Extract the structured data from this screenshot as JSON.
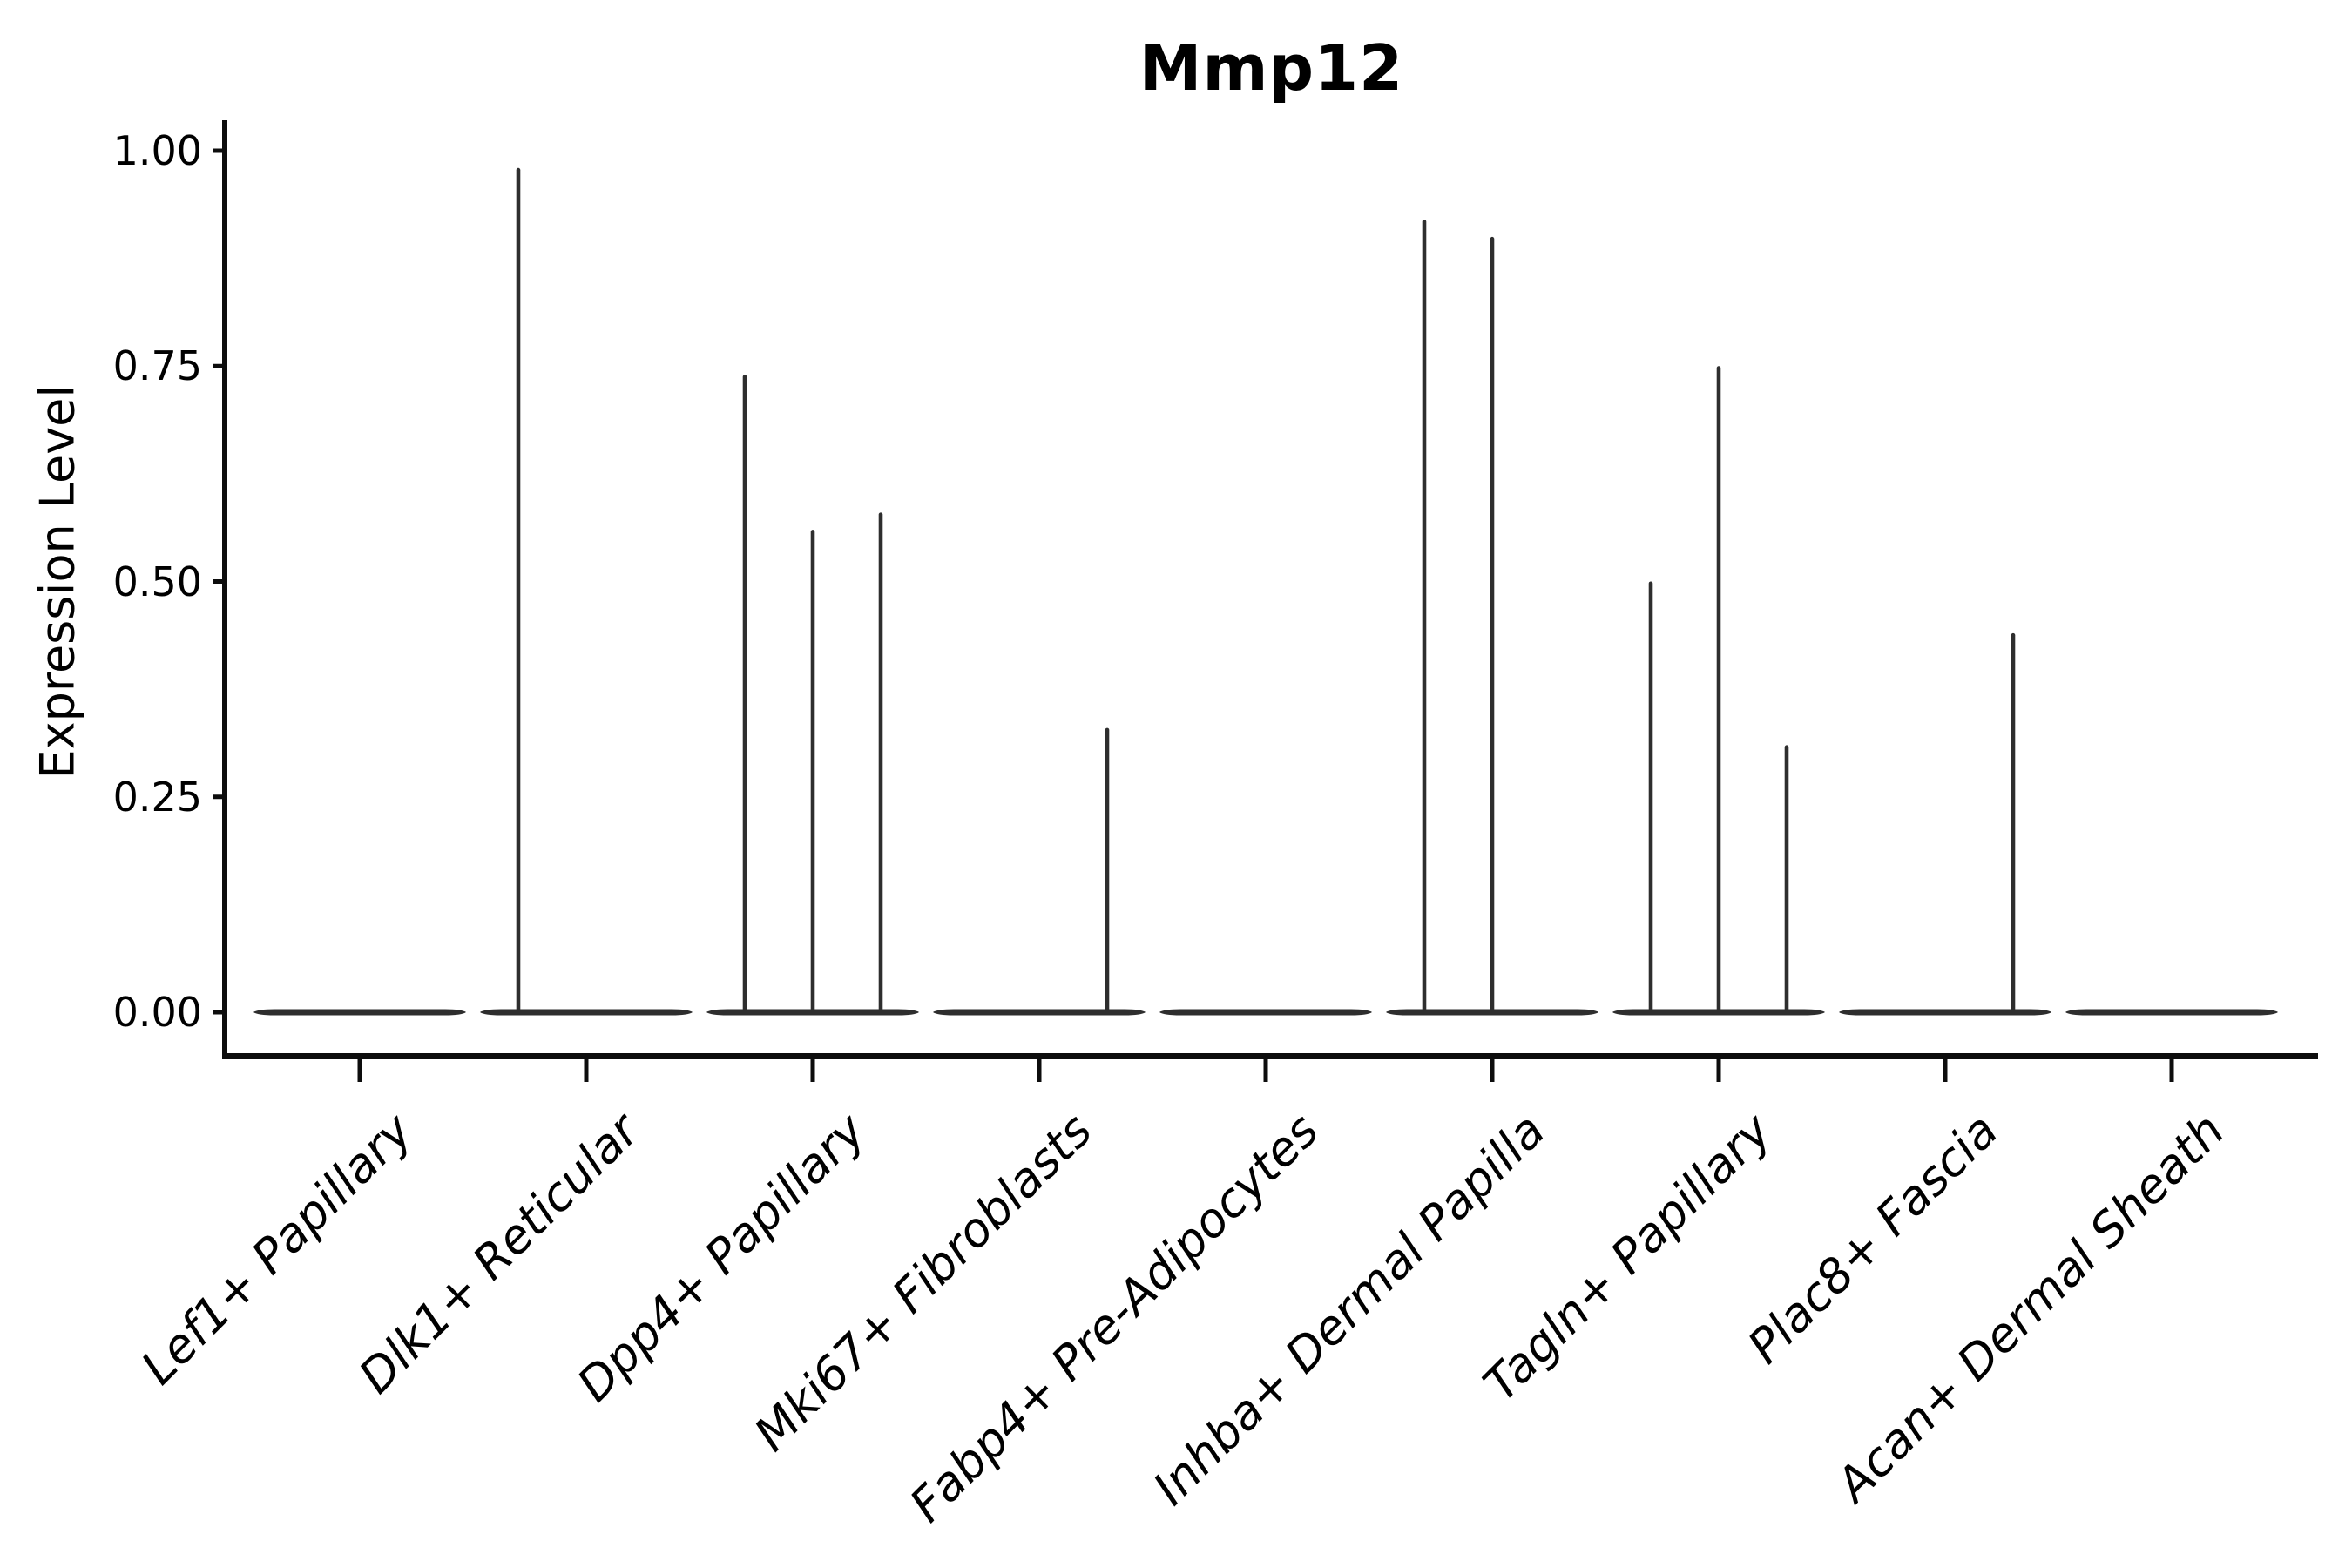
{
  "title": "Mmp12",
  "chart_data": {
    "type": "violin",
    "title": "Mmp12",
    "ylabel": "Expression Level",
    "xlabel": "",
    "legend": "none",
    "grid": false,
    "background": "#ffffff",
    "violin_color": "#2e2e2e",
    "axis_color": "#0d0d0d",
    "ylim": [
      -0.05,
      1.04
    ],
    "ytick_values": [
      0,
      0.25,
      0.5,
      0.75,
      1.0
    ],
    "ytick_labels": [
      "0.00",
      "0.25",
      "0.50",
      "0.75",
      "1.00"
    ],
    "baseline_value": 0.0,
    "note": "Each category shows a flattened violin at expression 0 with thin density spikes; spike offset is fraction of category spacing from category center.",
    "categories": [
      {
        "label": "Lef1+ Papillary",
        "spikes": []
      },
      {
        "label": "Dlk1+ Reticular",
        "spikes": [
          {
            "value": 0.98,
            "offset": -0.3
          }
        ]
      },
      {
        "label": "Dpp4+ Papillary",
        "spikes": [
          {
            "value": 0.74,
            "offset": -0.3
          },
          {
            "value": 0.56,
            "offset": 0.0
          },
          {
            "value": 0.58,
            "offset": 0.3
          }
        ]
      },
      {
        "label": "Mki67+ Fibroblasts",
        "spikes": [
          {
            "value": 0.33,
            "offset": 0.3
          }
        ]
      },
      {
        "label": "Fabp4+ Pre-Adipocytes",
        "spikes": []
      },
      {
        "label": "Inhba+ Dermal Papilla",
        "spikes": [
          {
            "value": 0.92,
            "offset": -0.3
          },
          {
            "value": 0.9,
            "offset": 0.0
          }
        ]
      },
      {
        "label": "Tagln+ Papillary",
        "spikes": [
          {
            "value": 0.5,
            "offset": -0.3
          },
          {
            "value": 0.75,
            "offset": 0.0
          },
          {
            "value": 0.31,
            "offset": 0.3
          }
        ]
      },
      {
        "label": "Plac8+ Fascia",
        "spikes": [
          {
            "value": 0.44,
            "offset": 0.3
          }
        ]
      },
      {
        "label": "Acan+ Dermal Sheath",
        "spikes": []
      }
    ]
  }
}
